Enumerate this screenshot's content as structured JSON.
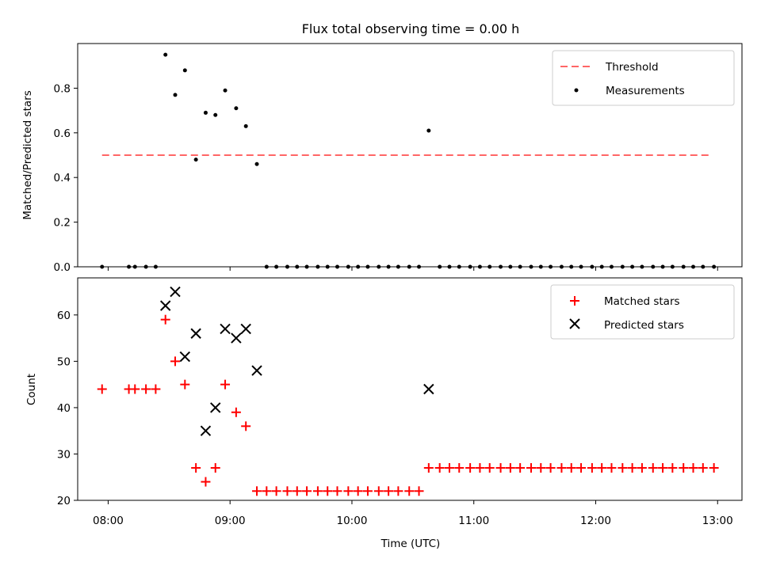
{
  "chart_data": [
    {
      "type": "scatter",
      "title": "Flux total observing time = 0.00 h",
      "xlabel": "",
      "ylabel": "Matched/Predicted stars",
      "xlim": [
        7.75,
        13.2
      ],
      "ylim": [
        0,
        1.0
      ],
      "yticks": [
        "0.0",
        "0.2",
        "0.4",
        "0.6",
        "0.8"
      ],
      "ytick_values": [
        0,
        0.2,
        0.4,
        0.6,
        0.8
      ],
      "threshold": {
        "name": "Threshold",
        "value": 0.5,
        "x_range": [
          7.95,
          12.95
        ],
        "color": "#ff6666"
      },
      "series": [
        {
          "name": "Measurements",
          "color": "#000000",
          "points": [
            [
              7.95,
              0
            ],
            [
              8.17,
              0
            ],
            [
              8.22,
              0
            ],
            [
              8.31,
              0
            ],
            [
              8.39,
              0
            ],
            [
              8.47,
              0.95
            ],
            [
              8.55,
              0.77
            ],
            [
              8.63,
              0.88
            ],
            [
              8.72,
              0.48
            ],
            [
              8.8,
              0.69
            ],
            [
              8.88,
              0.68
            ],
            [
              8.96,
              0.79
            ],
            [
              9.05,
              0.71
            ],
            [
              9.13,
              0.63
            ],
            [
              9.22,
              0.46
            ],
            [
              9.3,
              0
            ],
            [
              9.38,
              0
            ],
            [
              9.47,
              0
            ],
            [
              9.55,
              0
            ],
            [
              9.63,
              0
            ],
            [
              9.72,
              0
            ],
            [
              9.8,
              0
            ],
            [
              9.88,
              0
            ],
            [
              9.97,
              0
            ],
            [
              10.05,
              0
            ],
            [
              10.13,
              0
            ],
            [
              10.22,
              0
            ],
            [
              10.3,
              0
            ],
            [
              10.38,
              0
            ],
            [
              10.47,
              0
            ],
            [
              10.55,
              0
            ],
            [
              10.63,
              0.61
            ],
            [
              10.72,
              0
            ],
            [
              10.8,
              0
            ],
            [
              10.88,
              0
            ],
            [
              10.97,
              0
            ],
            [
              11.05,
              0
            ],
            [
              11.13,
              0
            ],
            [
              11.22,
              0
            ],
            [
              11.3,
              0
            ],
            [
              11.38,
              0
            ],
            [
              11.47,
              0
            ],
            [
              11.55,
              0
            ],
            [
              11.63,
              0
            ],
            [
              11.72,
              0
            ],
            [
              11.8,
              0
            ],
            [
              11.88,
              0
            ],
            [
              11.97,
              0
            ],
            [
              12.05,
              0
            ],
            [
              12.13,
              0
            ],
            [
              12.22,
              0
            ],
            [
              12.3,
              0
            ],
            [
              12.38,
              0
            ],
            [
              12.47,
              0
            ],
            [
              12.55,
              0
            ],
            [
              12.63,
              0
            ],
            [
              12.72,
              0
            ],
            [
              12.8,
              0
            ],
            [
              12.88,
              0
            ],
            [
              12.97,
              0
            ]
          ]
        }
      ],
      "legend": [
        "Threshold",
        "Measurements"
      ],
      "legend_position": "top-right"
    },
    {
      "type": "scatter",
      "title": "",
      "xlabel": "Time (UTC)",
      "ylabel": "Count",
      "xlim": [
        7.75,
        13.2
      ],
      "ylim": [
        20,
        68
      ],
      "yticks": [
        "20",
        "30",
        "40",
        "50",
        "60"
      ],
      "ytick_values": [
        20,
        30,
        40,
        50,
        60
      ],
      "xticks": [
        "08:00",
        "09:00",
        "10:00",
        "11:00",
        "12:00",
        "13:00"
      ],
      "xtick_values": [
        8,
        9,
        10,
        11,
        12,
        13
      ],
      "series": [
        {
          "name": "Matched stars",
          "marker": "plus",
          "color": "#ff0000",
          "points": [
            [
              7.95,
              44
            ],
            [
              8.17,
              44
            ],
            [
              8.22,
              44
            ],
            [
              8.31,
              44
            ],
            [
              8.39,
              44
            ],
            [
              8.47,
              59
            ],
            [
              8.55,
              50
            ],
            [
              8.63,
              45
            ],
            [
              8.72,
              27
            ],
            [
              8.8,
              24
            ],
            [
              8.88,
              27
            ],
            [
              8.96,
              45
            ],
            [
              9.05,
              39
            ],
            [
              9.13,
              36
            ],
            [
              9.22,
              22
            ],
            [
              9.3,
              22
            ],
            [
              9.38,
              22
            ],
            [
              9.47,
              22
            ],
            [
              9.55,
              22
            ],
            [
              9.63,
              22
            ],
            [
              9.72,
              22
            ],
            [
              9.8,
              22
            ],
            [
              9.88,
              22
            ],
            [
              9.97,
              22
            ],
            [
              10.05,
              22
            ],
            [
              10.13,
              22
            ],
            [
              10.22,
              22
            ],
            [
              10.3,
              22
            ],
            [
              10.38,
              22
            ],
            [
              10.47,
              22
            ],
            [
              10.55,
              22
            ],
            [
              10.63,
              27
            ],
            [
              10.72,
              27
            ],
            [
              10.8,
              27
            ],
            [
              10.88,
              27
            ],
            [
              10.97,
              27
            ],
            [
              11.05,
              27
            ],
            [
              11.13,
              27
            ],
            [
              11.22,
              27
            ],
            [
              11.3,
              27
            ],
            [
              11.38,
              27
            ],
            [
              11.47,
              27
            ],
            [
              11.55,
              27
            ],
            [
              11.63,
              27
            ],
            [
              11.72,
              27
            ],
            [
              11.8,
              27
            ],
            [
              11.88,
              27
            ],
            [
              11.97,
              27
            ],
            [
              12.05,
              27
            ],
            [
              12.13,
              27
            ],
            [
              12.22,
              27
            ],
            [
              12.3,
              27
            ],
            [
              12.38,
              27
            ],
            [
              12.47,
              27
            ],
            [
              12.55,
              27
            ],
            [
              12.63,
              27
            ],
            [
              12.72,
              27
            ],
            [
              12.8,
              27
            ],
            [
              12.88,
              27
            ],
            [
              12.97,
              27
            ]
          ]
        },
        {
          "name": "Predicted stars",
          "marker": "x",
          "color": "#000000",
          "points": [
            [
              8.47,
              62
            ],
            [
              8.55,
              65
            ],
            [
              8.63,
              51
            ],
            [
              8.72,
              56
            ],
            [
              8.8,
              35
            ],
            [
              8.88,
              40
            ],
            [
              8.96,
              57
            ],
            [
              9.05,
              55
            ],
            [
              9.13,
              57
            ],
            [
              9.22,
              48
            ],
            [
              10.63,
              44
            ]
          ]
        }
      ],
      "legend": [
        "Matched stars",
        "Predicted stars"
      ],
      "legend_position": "top-right"
    }
  ]
}
